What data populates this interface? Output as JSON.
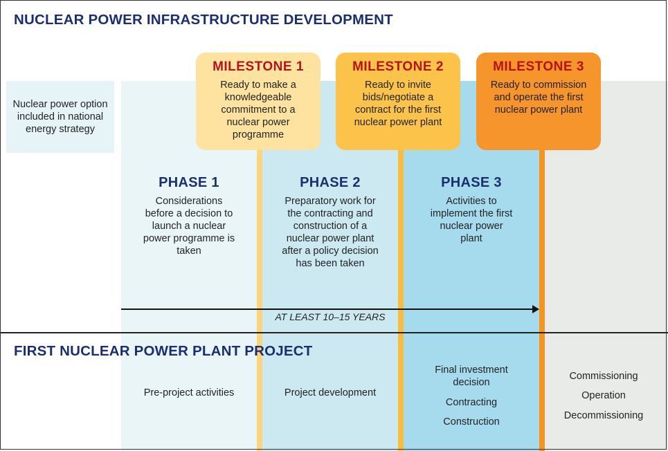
{
  "header": {
    "title": "NUCLEAR POWER INFRASTRUCTURE DEVELOPMENT"
  },
  "strategy_box": {
    "text": "Nuclear power option included in national energy strategy"
  },
  "milestones": [
    {
      "title": "MILESTONE 1",
      "text": "Ready to make a knowledgeable commitment to a nuclear power programme",
      "color": "#fde39f"
    },
    {
      "title": "MILESTONE 2",
      "text": "Ready to invite bids/negotiate a contract for the first nuclear power plant",
      "color": "#fbc349"
    },
    {
      "title": "MILESTONE 3",
      "text": "Ready to commission and operate the first nuclear power plant",
      "color": "#f6952c"
    }
  ],
  "phases": [
    {
      "title": "PHASE 1",
      "text": "Considerations before a decision to launch a nuclear power programme is taken"
    },
    {
      "title": "PHASE 2",
      "text": "Preparatory work for the contracting and construction of a nuclear power plant after a policy decision has been taken"
    },
    {
      "title": "PHASE 3",
      "text": "Activities to implement the first nuclear power plant"
    }
  ],
  "timeline": {
    "label": "AT LEAST 10–15 YEARS"
  },
  "project": {
    "title": "FIRST NUCLEAR POWER PLANT PROJECT",
    "col1": "Pre-project activities",
    "col2": "Project development",
    "col3": [
      "Final investment decision",
      "Contracting",
      "Construction"
    ],
    "col4": [
      "Commissioning",
      "Operation",
      "Decommissioning"
    ]
  },
  "colors": {
    "title": "#1b2f6e",
    "milestone_title": "#b5121b",
    "phase1_bg": "#eaf5f8",
    "phase2_bg": "#cce9f1",
    "phase3_bg": "#a6dbee",
    "post_bg": "#e8ebe8"
  }
}
